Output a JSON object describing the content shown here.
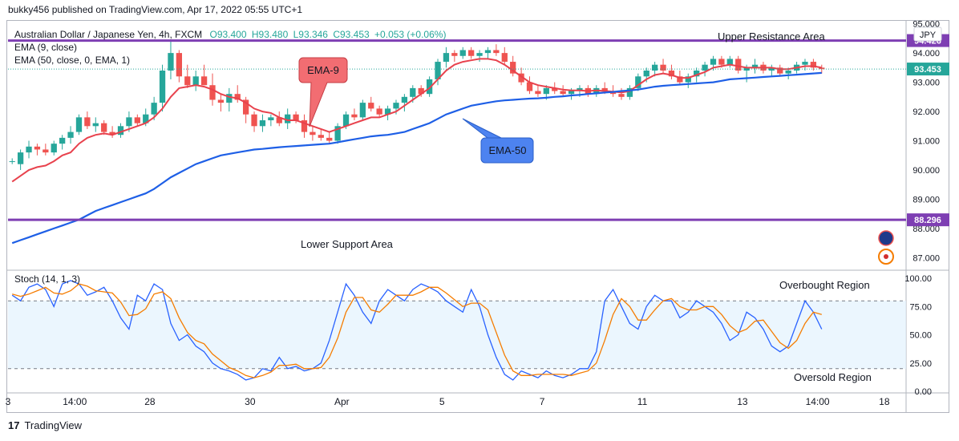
{
  "header": {
    "published": "bukky456 published on TradingView.com, Apr 17, 2022 05:55 UTC+1"
  },
  "legend": {
    "symbol": "Australian Dollar / Japanese Yen, 4h, FXCM",
    "open": "O93.400",
    "high": "H93.480",
    "low": "L93.346",
    "close": "C93.453",
    "change": "+0.053 (+0.06%)",
    "ema9": "EMA (9, close)",
    "ema50": "EMA (50, close, 0, EMA, 1)"
  },
  "currency": "JPY",
  "annotations": {
    "upper": "Upper Resistance Area",
    "lower": "Lower Support Area",
    "ema9_callout": "EMA-9",
    "ema50_callout": "EMA-50",
    "overbought": "Overbought Region",
    "oversold": "Oversold Region"
  },
  "levels": {
    "resistance": "94.426",
    "support": "88.296",
    "last": "93.453"
  },
  "stoch_label": "Stoch (14, 1, 3)",
  "footer": {
    "brand": "TradingView"
  },
  "colors": {
    "up": "#26a69a",
    "down": "#ef5350",
    "ema9": "#e8424d",
    "ema50": "#1e5fe6",
    "level": "#7e3fb3",
    "stochK": "#2962ff",
    "stochD": "#f57c00"
  },
  "chart_data": [
    {
      "type": "candlestick",
      "title": "",
      "ylim": [
        86.6,
        95.1
      ],
      "y_ticks": [
        "95.000",
        "94.000",
        "93.000",
        "92.000",
        "91.000",
        "90.000",
        "89.000",
        "88.000",
        "87.000"
      ],
      "x_ticks": [
        "3",
        "14:00",
        "28",
        "30",
        "Apr",
        "5",
        "7",
        "11",
        "13",
        "14:00",
        "18"
      ],
      "horizontal_levels": [
        94.426,
        88.296
      ],
      "ohlc": [
        [
          90.3,
          90.4,
          90.2,
          90.3
        ],
        [
          90.2,
          90.7,
          90.0,
          90.6
        ],
        [
          90.6,
          91.0,
          90.4,
          90.8
        ],
        [
          90.8,
          90.9,
          90.5,
          90.7
        ],
        [
          90.7,
          90.9,
          90.5,
          90.6
        ],
        [
          90.6,
          91.0,
          90.5,
          90.9
        ],
        [
          90.9,
          91.2,
          90.7,
          91.1
        ],
        [
          91.1,
          91.5,
          90.9,
          91.3
        ],
        [
          91.3,
          91.9,
          91.2,
          91.8
        ],
        [
          91.8,
          92.0,
          91.4,
          91.5
        ],
        [
          91.5,
          91.8,
          91.3,
          91.6
        ],
        [
          91.6,
          91.7,
          91.2,
          91.3
        ],
        [
          91.3,
          91.5,
          91.1,
          91.2
        ],
        [
          91.2,
          91.6,
          91.1,
          91.5
        ],
        [
          91.5,
          92.0,
          91.3,
          91.8
        ],
        [
          91.8,
          91.9,
          91.5,
          91.6
        ],
        [
          91.6,
          92.1,
          91.5,
          91.9
        ],
        [
          91.9,
          92.5,
          91.7,
          92.3
        ],
        [
          92.3,
          93.6,
          92.0,
          93.4
        ],
        [
          93.4,
          94.4,
          93.1,
          94.0
        ],
        [
          94.0,
          94.1,
          93.0,
          93.2
        ],
        [
          93.2,
          93.6,
          92.8,
          92.9
        ],
        [
          92.9,
          93.4,
          92.7,
          93.2
        ],
        [
          93.2,
          93.6,
          92.9,
          92.9
        ],
        [
          92.9,
          93.3,
          92.2,
          92.4
        ],
        [
          92.4,
          92.6,
          92.0,
          92.3
        ],
        [
          92.3,
          92.8,
          92.0,
          92.6
        ],
        [
          92.6,
          92.9,
          92.3,
          92.4
        ],
        [
          92.4,
          92.5,
          91.6,
          91.9
        ],
        [
          91.9,
          92.0,
          91.3,
          91.5
        ],
        [
          91.5,
          91.9,
          91.3,
          91.7
        ],
        [
          91.7,
          91.9,
          91.5,
          91.8
        ],
        [
          91.8,
          92.0,
          91.5,
          91.6
        ],
        [
          91.6,
          92.1,
          91.4,
          91.9
        ],
        [
          91.9,
          92.0,
          91.6,
          91.7
        ],
        [
          91.7,
          91.9,
          91.1,
          91.3
        ],
        [
          91.3,
          91.5,
          91.0,
          91.2
        ],
        [
          91.2,
          91.4,
          91.0,
          91.1
        ],
        [
          91.1,
          91.3,
          90.9,
          91.0
        ],
        [
          91.0,
          91.6,
          90.9,
          91.5
        ],
        [
          91.5,
          92.0,
          91.4,
          91.9
        ],
        [
          91.9,
          92.1,
          91.7,
          91.8
        ],
        [
          91.8,
          92.4,
          91.7,
          92.3
        ],
        [
          92.3,
          92.5,
          92.0,
          92.1
        ],
        [
          92.1,
          92.2,
          91.8,
          91.9
        ],
        [
          91.9,
          92.2,
          91.7,
          92.1
        ],
        [
          92.1,
          92.4,
          91.9,
          92.3
        ],
        [
          92.3,
          92.6,
          92.0,
          92.5
        ],
        [
          92.5,
          92.9,
          92.3,
          92.8
        ],
        [
          92.8,
          92.9,
          92.5,
          92.6
        ],
        [
          92.6,
          93.2,
          92.5,
          93.1
        ],
        [
          93.1,
          93.8,
          92.9,
          93.7
        ],
        [
          93.7,
          94.2,
          93.5,
          94.0
        ],
        [
          94.0,
          94.1,
          93.7,
          93.9
        ],
        [
          93.9,
          94.2,
          93.8,
          94.1
        ],
        [
          94.1,
          94.2,
          93.8,
          93.9
        ],
        [
          93.9,
          94.1,
          93.7,
          94.0
        ],
        [
          94.0,
          94.2,
          93.8,
          94.1
        ],
        [
          94.1,
          94.3,
          93.9,
          94.0
        ],
        [
          94.0,
          94.2,
          93.6,
          93.7
        ],
        [
          93.7,
          93.9,
          93.2,
          93.3
        ],
        [
          93.3,
          93.5,
          92.9,
          93.0
        ],
        [
          93.0,
          93.2,
          92.6,
          92.7
        ],
        [
          92.7,
          92.9,
          92.5,
          92.6
        ],
        [
          92.6,
          92.9,
          92.4,
          92.8
        ],
        [
          92.8,
          93.0,
          92.6,
          92.7
        ],
        [
          92.7,
          92.9,
          92.5,
          92.6
        ],
        [
          92.6,
          92.8,
          92.4,
          92.7
        ],
        [
          92.7,
          92.9,
          92.5,
          92.8
        ],
        [
          92.8,
          92.9,
          92.5,
          92.6
        ],
        [
          92.6,
          92.9,
          92.5,
          92.8
        ],
        [
          92.8,
          93.0,
          92.6,
          92.7
        ],
        [
          92.7,
          92.9,
          92.5,
          92.6
        ],
        [
          92.6,
          92.8,
          92.4,
          92.5
        ],
        [
          92.5,
          92.9,
          92.4,
          92.8
        ],
        [
          92.8,
          93.3,
          92.7,
          93.2
        ],
        [
          93.2,
          93.5,
          93.0,
          93.4
        ],
        [
          93.4,
          93.7,
          93.2,
          93.6
        ],
        [
          93.6,
          93.8,
          93.3,
          93.4
        ],
        [
          93.4,
          93.6,
          93.1,
          93.2
        ],
        [
          93.2,
          93.4,
          92.9,
          93.0
        ],
        [
          93.0,
          93.3,
          92.8,
          93.2
        ],
        [
          93.2,
          93.5,
          93.0,
          93.4
        ],
        [
          93.4,
          93.7,
          93.2,
          93.6
        ],
        [
          93.6,
          93.9,
          93.4,
          93.8
        ],
        [
          93.8,
          93.9,
          93.5,
          93.6
        ],
        [
          93.6,
          93.9,
          93.5,
          93.8
        ],
        [
          93.8,
          93.9,
          93.3,
          93.4
        ],
        [
          93.4,
          93.6,
          93.0,
          93.5
        ],
        [
          93.5,
          93.8,
          93.3,
          93.6
        ],
        [
          93.6,
          93.7,
          93.3,
          93.4
        ],
        [
          93.4,
          93.6,
          93.2,
          93.5
        ],
        [
          93.5,
          93.6,
          93.2,
          93.3
        ],
        [
          93.3,
          93.5,
          93.1,
          93.4
        ],
        [
          93.4,
          93.7,
          93.3,
          93.6
        ],
        [
          93.6,
          93.8,
          93.4,
          93.7
        ],
        [
          93.7,
          93.8,
          93.4,
          93.5
        ],
        [
          93.5,
          93.6,
          93.3,
          93.45
        ]
      ],
      "series": [
        {
          "name": "EMA (9, close)",
          "values": [
            89.6,
            89.8,
            90.0,
            90.1,
            90.15,
            90.3,
            90.5,
            90.6,
            90.9,
            91.1,
            91.2,
            91.25,
            91.2,
            91.3,
            91.4,
            91.5,
            91.6,
            91.8,
            92.1,
            92.5,
            92.8,
            92.85,
            92.9,
            92.85,
            92.75,
            92.6,
            92.5,
            92.45,
            92.3,
            92.1,
            92.0,
            91.95,
            91.8,
            91.7,
            91.7,
            91.6,
            91.5,
            91.4,
            91.3,
            91.4,
            91.5,
            91.6,
            91.7,
            91.8,
            91.8,
            91.9,
            92.0,
            92.2,
            92.4,
            92.6,
            92.8,
            93.1,
            93.4,
            93.6,
            93.7,
            93.75,
            93.8,
            93.8,
            93.75,
            93.6,
            93.4,
            93.2,
            93.0,
            92.9,
            92.85,
            92.8,
            92.75,
            92.72,
            92.72,
            92.7,
            92.72,
            92.7,
            92.68,
            92.65,
            92.7,
            92.9,
            93.1,
            93.25,
            93.3,
            93.25,
            93.15,
            93.15,
            93.25,
            93.35,
            93.5,
            93.55,
            93.6,
            93.55,
            93.5,
            93.5,
            93.5,
            93.5,
            93.45,
            93.45,
            93.5,
            93.55,
            93.55,
            93.5
          ]
        },
        {
          "name": "EMA (50, close, 0, EMA, 1)",
          "values": [
            87.5,
            87.6,
            87.7,
            87.8,
            87.9,
            88.0,
            88.1,
            88.2,
            88.3,
            88.45,
            88.6,
            88.7,
            88.8,
            88.9,
            89.0,
            89.1,
            89.2,
            89.35,
            89.55,
            89.75,
            89.9,
            90.05,
            90.2,
            90.3,
            90.4,
            90.5,
            90.55,
            90.6,
            90.65,
            90.7,
            90.72,
            90.75,
            90.78,
            90.8,
            90.82,
            90.84,
            90.86,
            90.88,
            90.9,
            90.95,
            91.0,
            91.05,
            91.1,
            91.15,
            91.18,
            91.2,
            91.25,
            91.3,
            91.4,
            91.5,
            91.6,
            91.75,
            91.9,
            92.0,
            92.1,
            92.2,
            92.25,
            92.3,
            92.35,
            92.38,
            92.4,
            92.42,
            92.44,
            92.45,
            92.47,
            92.5,
            92.52,
            92.55,
            92.57,
            92.6,
            92.62,
            92.65,
            92.67,
            92.7,
            92.72,
            92.75,
            92.8,
            92.85,
            92.88,
            92.9,
            92.92,
            92.94,
            92.96,
            92.98,
            93.0,
            93.05,
            93.1,
            93.12,
            93.14,
            93.16,
            93.18,
            93.2,
            93.22,
            93.24,
            93.26,
            93.28,
            93.3,
            93.32
          ]
        }
      ]
    },
    {
      "type": "line",
      "title": "Stoch (14, 1, 3)",
      "ylim": [
        0,
        105
      ],
      "y_ticks": [
        "100.00",
        "75.00",
        "50.00",
        "25.00",
        "0.00"
      ],
      "bands": [
        20,
        80
      ],
      "series": [
        {
          "name": "%K",
          "values": [
            85,
            80,
            92,
            95,
            90,
            75,
            95,
            98,
            95,
            85,
            88,
            92,
            80,
            65,
            55,
            85,
            80,
            95,
            90,
            60,
            45,
            50,
            40,
            35,
            25,
            20,
            18,
            15,
            10,
            12,
            20,
            18,
            30,
            20,
            22,
            18,
            20,
            25,
            45,
            70,
            95,
            85,
            70,
            60,
            80,
            90,
            85,
            80,
            90,
            95,
            92,
            88,
            80,
            75,
            70,
            90,
            75,
            50,
            30,
            15,
            10,
            18,
            15,
            12,
            18,
            14,
            12,
            15,
            20,
            20,
            35,
            80,
            90,
            75,
            60,
            55,
            75,
            85,
            80,
            80,
            65,
            70,
            80,
            75,
            70,
            60,
            45,
            50,
            70,
            65,
            55,
            40,
            35,
            40,
            60,
            80,
            70,
            55
          ]
        },
        {
          "name": "%D",
          "values": [
            86,
            84,
            86,
            89,
            92,
            87,
            86,
            89,
            95,
            93,
            89,
            88,
            87,
            79,
            67,
            68,
            73,
            86,
            88,
            82,
            65,
            52,
            45,
            42,
            33,
            27,
            21,
            18,
            14,
            12,
            14,
            17,
            23,
            23,
            24,
            20,
            20,
            21,
            30,
            47,
            70,
            83,
            83,
            72,
            70,
            77,
            85,
            85,
            85,
            88,
            92,
            92,
            87,
            81,
            75,
            78,
            78,
            72,
            52,
            32,
            18,
            14,
            14,
            15,
            15,
            15,
            15,
            14,
            16,
            18,
            25,
            45,
            68,
            82,
            75,
            63,
            63,
            72,
            80,
            82,
            75,
            72,
            72,
            75,
            75,
            68,
            58,
            52,
            55,
            62,
            63,
            53,
            43,
            38,
            45,
            60,
            70,
            68
          ]
        }
      ]
    }
  ]
}
